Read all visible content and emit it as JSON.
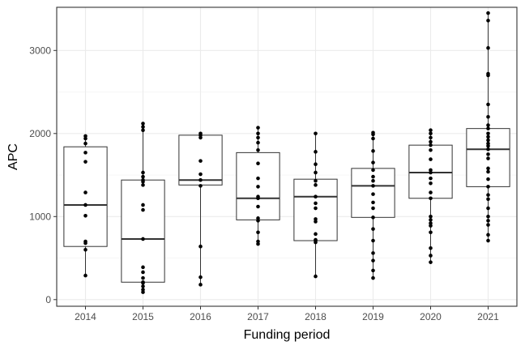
{
  "chart_data": {
    "type": "boxplot",
    "xlabel": "Funding period",
    "ylabel": "APC",
    "categories": [
      "2014",
      "2015",
      "2016",
      "2017",
      "2018",
      "2019",
      "2020",
      "2021"
    ],
    "y_ticks": [
      0,
      1000,
      2000,
      3000
    ],
    "y_tick_labels": [
      "0",
      "1000",
      "2000",
      "3000"
    ],
    "ylim": [
      -80,
      3520
    ],
    "grid": true,
    "theme": "bw",
    "boxes": [
      {
        "category": "2014",
        "q1": 640,
        "median": 1140,
        "q3": 1840,
        "whisker_low": 290,
        "whisker_high": 1970
      },
      {
        "category": "2015",
        "q1": 210,
        "median": 730,
        "q3": 1440,
        "whisker_low": 90,
        "whisker_high": 2120
      },
      {
        "category": "2016",
        "q1": 1380,
        "median": 1440,
        "q3": 1980,
        "whisker_low": 180,
        "whisker_high": 2000
      },
      {
        "category": "2017",
        "q1": 960,
        "median": 1220,
        "q3": 1770,
        "whisker_low": 670,
        "whisker_high": 2070
      },
      {
        "category": "2018",
        "q1": 710,
        "median": 1240,
        "q3": 1450,
        "whisker_low": 280,
        "whisker_high": 2000
      },
      {
        "category": "2019",
        "q1": 990,
        "median": 1370,
        "q3": 1580,
        "whisker_low": 260,
        "whisker_high": 2010
      },
      {
        "category": "2020",
        "q1": 1220,
        "median": 1530,
        "q3": 1860,
        "whisker_low": 450,
        "whisker_high": 2040
      },
      {
        "category": "2021",
        "q1": 1360,
        "median": 1810,
        "q3": 2060,
        "whisker_low": 710,
        "whisker_high": 3450
      }
    ],
    "points": [
      {
        "category": "2014",
        "values": [
          290,
          600,
          680,
          700,
          1010,
          1140,
          1290,
          1660,
          1770,
          1880,
          1940,
          1970
        ]
      },
      {
        "category": "2015",
        "values": [
          90,
          120,
          160,
          200,
          210,
          260,
          330,
          390,
          730,
          1080,
          1140,
          1380,
          1420,
          1440,
          1480,
          1530,
          2040,
          2080,
          2120
        ]
      },
      {
        "category": "2016",
        "values": [
          180,
          270,
          640,
          1370,
          1440,
          1510,
          1670,
          1950,
          1980,
          2000
        ]
      },
      {
        "category": "2017",
        "values": [
          670,
          700,
          810,
          950,
          980,
          1120,
          1220,
          1240,
          1360,
          1460,
          1640,
          1800,
          1890,
          1950,
          2000,
          2070
        ]
      },
      {
        "category": "2018",
        "values": [
          280,
          690,
          710,
          720,
          790,
          940,
          970,
          1100,
          1160,
          1240,
          1380,
          1430,
          1530,
          1630,
          1780,
          2000
        ]
      },
      {
        "category": "2019",
        "values": [
          260,
          350,
          470,
          560,
          710,
          850,
          990,
          1100,
          1170,
          1270,
          1370,
          1430,
          1480,
          1560,
          1650,
          1790,
          1940,
          1990,
          2010
        ]
      },
      {
        "category": "2020",
        "values": [
          450,
          530,
          620,
          810,
          890,
          920,
          960,
          1000,
          1220,
          1290,
          1400,
          1460,
          1530,
          1560,
          1690,
          1800,
          1860,
          1900,
          1950,
          2000,
          2040
        ]
      },
      {
        "category": "2021",
        "values": [
          710,
          780,
          900,
          950,
          1000,
          1100,
          1210,
          1260,
          1360,
          1450,
          1540,
          1580,
          1700,
          1750,
          1810,
          1850,
          1880,
          1920,
          1960,
          2000,
          2060,
          2100,
          2200,
          2350,
          2700,
          2720,
          3030,
          3360,
          3450
        ]
      }
    ]
  }
}
